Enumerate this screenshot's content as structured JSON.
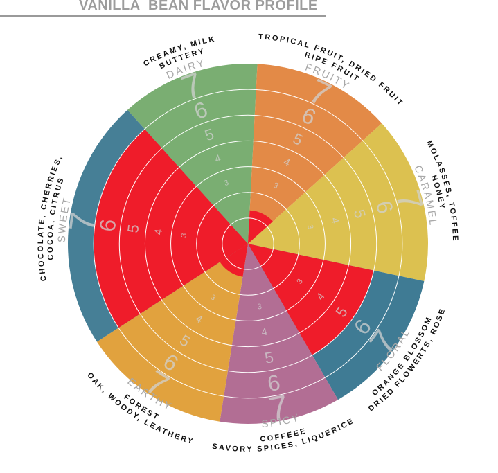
{
  "title": "VANILLA  BEAN FLAVOR PROFILE",
  "colors": {
    "highlight": "#ef1c2a",
    "ring": "#ffffff",
    "number": "#d0d0d0"
  },
  "chart_data": {
    "type": "radial-bar",
    "title": "VANILLA  BEAN FLAVOR PROFILE",
    "scale": {
      "min": 0,
      "max": 7,
      "ring_labels": [
        "3",
        "4",
        "5",
        "6",
        "7"
      ]
    },
    "grid": true,
    "segments": [
      {
        "name": "DAIRY",
        "descriptors": [
          "CREAMY, MILK",
          "BUTTERY"
        ],
        "color": "#7aae72",
        "value": 0
      },
      {
        "name": "FRUITY",
        "descriptors": [
          "TROPICAL FRUIT, DRIED FRUIT",
          "RIPE FRUIT"
        ],
        "color": "#e38a47",
        "value": 1.3
      },
      {
        "name": "CARAMEL",
        "descriptors": [
          "MOLASSES, TOFFEE",
          "HONEY"
        ],
        "color": "#dcc150",
        "value": 0
      },
      {
        "name": "FLORAL",
        "descriptors": [
          "ORANGE BLOSSOM",
          "DRIED FLOWERTS, ROSE"
        ],
        "color": "#3f7b94",
        "value": 5
      },
      {
        "name": "SPICY",
        "descriptors": [
          "COFFEEE",
          "SAVORY SPICES, LIQUERICE"
        ],
        "color": "#b26e94",
        "value": 0
      },
      {
        "name": "EARTHY",
        "descriptors": [
          "FOREST",
          "OAK, WOODY, LEATHERY"
        ],
        "color": "#e1a23e",
        "value": 1.3
      },
      {
        "name": "SWEET",
        "descriptors": [
          "CHOCOLATE, CHERRIES,",
          "COCOA, CITRUS"
        ],
        "color": "#467f96",
        "value": 6
      }
    ]
  }
}
